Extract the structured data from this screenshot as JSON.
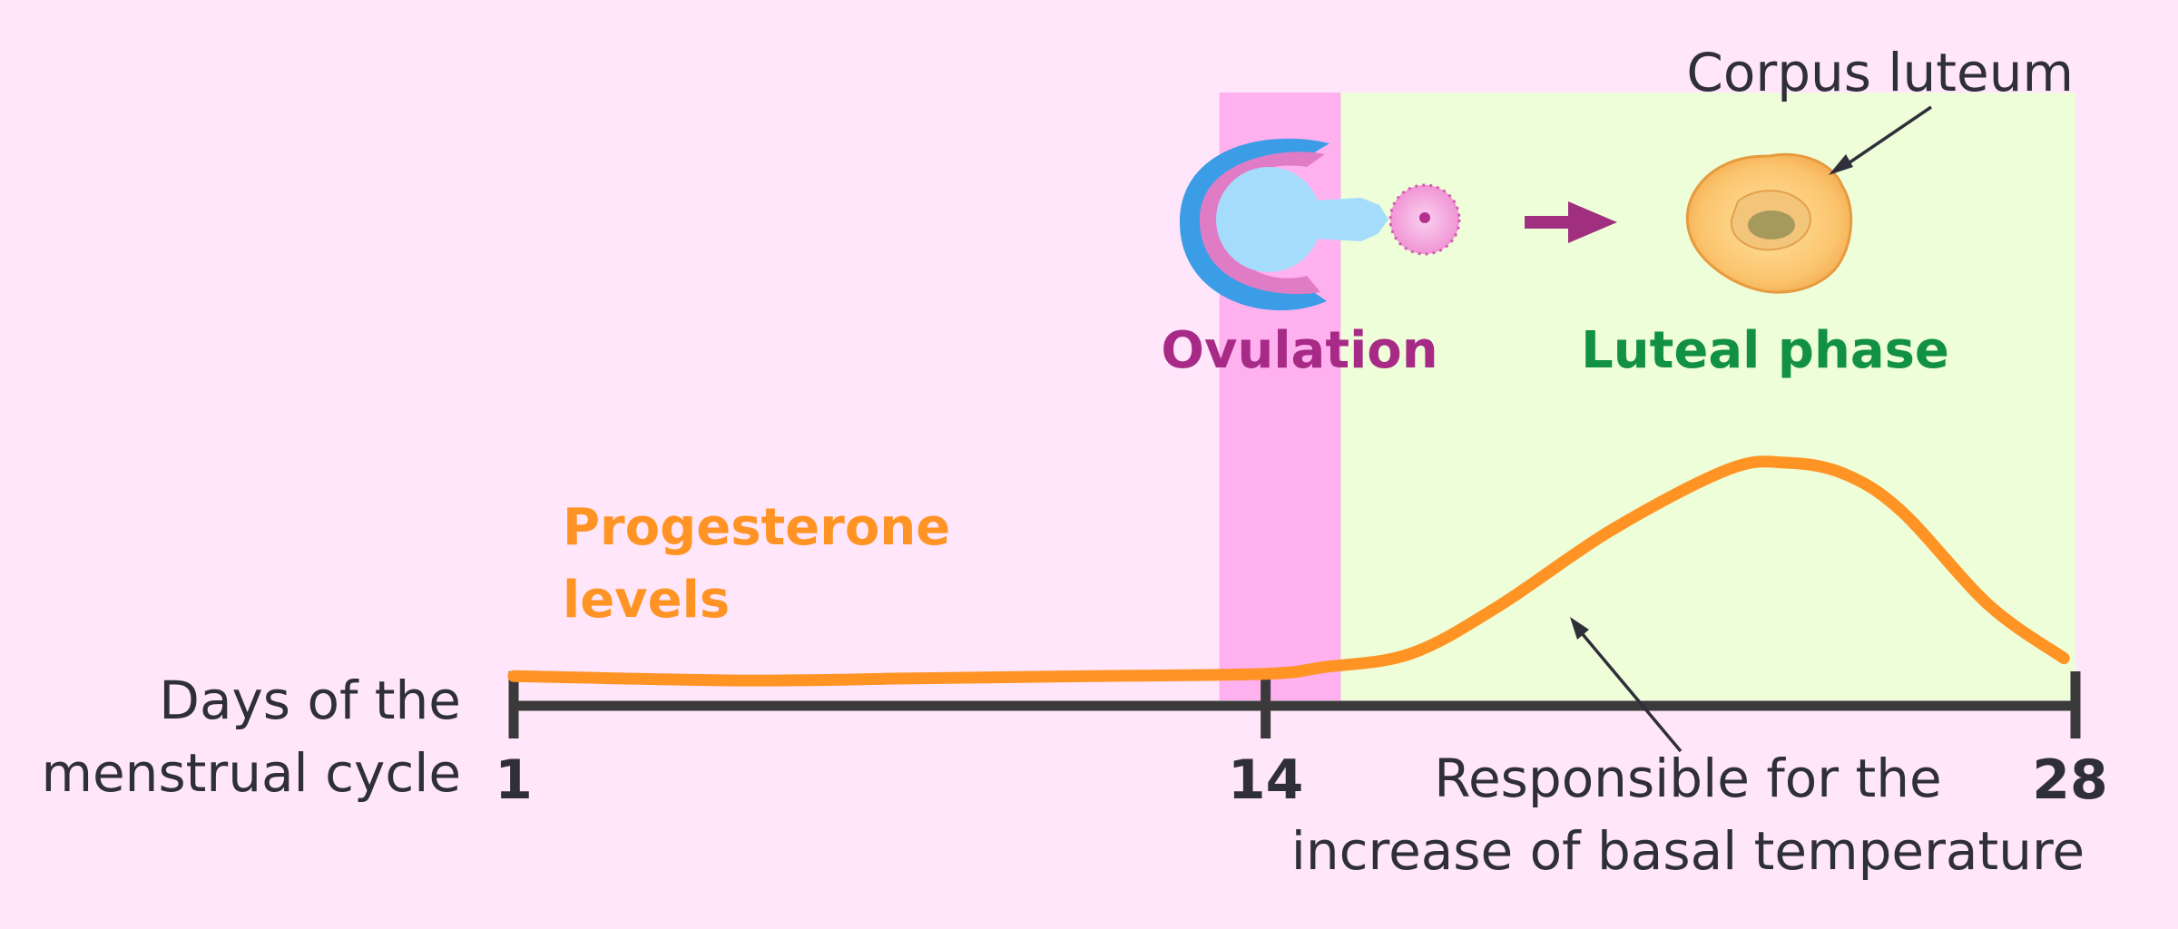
{
  "labels": {
    "corpus_luteum": "Corpus luteum",
    "ovulation": "Ovulation",
    "luteal_phase": "Luteal phase",
    "progesterone_line1": "Progesterone",
    "progesterone_line2": "levels",
    "axis_line1": "Days of the",
    "axis_line2": "menstrual cycle",
    "responsible_line1": "Responsible for the",
    "responsible_line2": "increase of basal temperature"
  },
  "colors": {
    "background": "#ffe6fa",
    "ovulation_band": "#ffb0ee",
    "luteal_band": "#edfed8",
    "ovulation_text": "#a62a86",
    "luteal_text": "#139143",
    "curve": "#ff9324",
    "axis": "#3a3a3a",
    "arrow_icon": "#a0307f"
  },
  "chart_data": {
    "type": "line",
    "xlabel": "Days of the menstrual cycle",
    "ylabel": "",
    "xlim": [
      1,
      28
    ],
    "ticks": [
      1,
      14,
      28
    ],
    "tick_labels": [
      "1",
      "14",
      "28"
    ],
    "series": [
      {
        "name": "Progesterone levels",
        "x": [
          1,
          5,
          8,
          11,
          14,
          15,
          16.5,
          18,
          20,
          22,
          23,
          24,
          25,
          26.5,
          27.8
        ],
        "y": [
          0.04,
          0.02,
          0.03,
          0.04,
          0.05,
          0.08,
          0.14,
          0.35,
          0.7,
          0.97,
          1.0,
          0.95,
          0.78,
          0.36,
          0.12
        ]
      }
    ],
    "regions": [
      {
        "name": "Ovulation",
        "from": 13.2,
        "to": 15.3
      },
      {
        "name": "Luteal phase",
        "from": 15.3,
        "to": 28
      }
    ]
  }
}
